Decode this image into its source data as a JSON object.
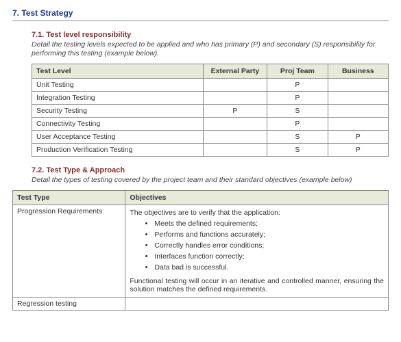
{
  "heading": "7. Test Strategy",
  "section1": {
    "title": "7.1. Test level responsibility",
    "desc": "Detail the testing levels expected to be applied and who has primary (P) and secondary (S) responsibility for performing this testing (example below).",
    "cols": [
      "Test Level",
      "External Party",
      "Proj Team",
      "Business"
    ],
    "rows": [
      {
        "level": "Unit Testing",
        "ext": "",
        "team": "P",
        "bus": ""
      },
      {
        "level": "Integration Testing",
        "ext": "",
        "team": "P",
        "bus": ""
      },
      {
        "level": "Security Testing",
        "ext": "P",
        "team": "S",
        "bus": ""
      },
      {
        "level": "Connectivity Testing",
        "ext": "",
        "team": "P",
        "bus": ""
      },
      {
        "level": "User Acceptance Testing",
        "ext": "",
        "team": "S",
        "bus": "P"
      },
      {
        "level": "Production Verification Testing",
        "ext": "",
        "team": "S",
        "bus": "P"
      }
    ]
  },
  "section2": {
    "title": "7.2. Test Type & Approach",
    "desc": "Detail the types of testing covered by the project team and their standard objectives (example below)",
    "cols": [
      "Test Type",
      "Objectives"
    ],
    "rows": [
      {
        "type": "Progression Requirements",
        "intro": "The objectives are to verify that the application:",
        "bullets": [
          "Meets the defined requirements;",
          "Performs and functions accurately;",
          "Correctly handles error conditions;",
          "Interfaces function correctly;",
          "Data bad is successful."
        ],
        "outro": "Functional testing will occur in an iterative and controlled manner, ensuring the solution matches the defined requirements."
      },
      {
        "type": "Regression testing",
        "intro": "",
        "bullets": [],
        "outro": ""
      }
    ]
  },
  "colors": {
    "heading": "#1a3a8a",
    "subheading": "#8a2a2a",
    "th_bg": "#e8ead9",
    "border": "#888888",
    "text": "#333333"
  }
}
